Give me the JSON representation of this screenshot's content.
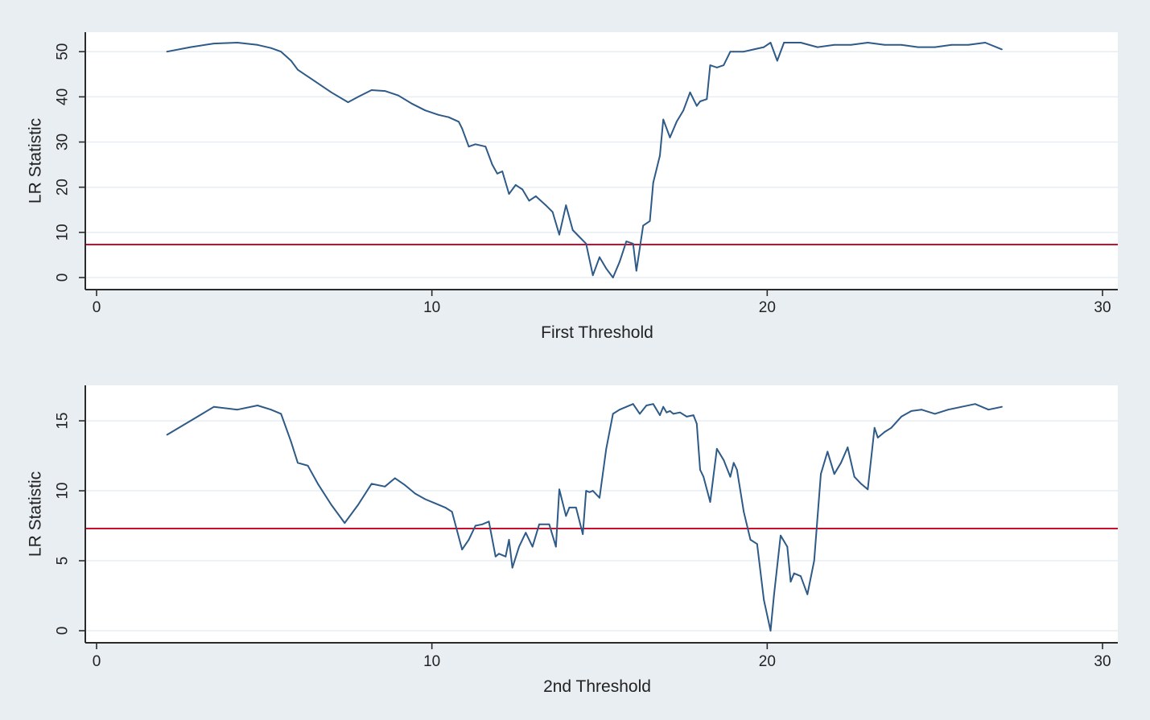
{
  "chart_data": [
    {
      "type": "line",
      "title": "",
      "xlabel": "First Threshold",
      "ylabel": "LR Statistic",
      "xlim": [
        0,
        30
      ],
      "ylim": [
        0,
        52
      ],
      "xticks": [
        0,
        10,
        20,
        30
      ],
      "yticks": [
        0,
        10,
        20,
        30,
        40,
        50
      ],
      "grid": true,
      "colors": {
        "series": "#2e5a87",
        "critical": "#c8102e"
      },
      "critical_value": 7.3,
      "series": [
        {
          "x": [
            2.1,
            2.8,
            3.5,
            4.2,
            4.8,
            5.2,
            5.5,
            5.8,
            6.0,
            6.5,
            7.0,
            7.5,
            7.8,
            8.2,
            8.6,
            9.0,
            9.4,
            9.8,
            10.2,
            10.5,
            10.8,
            10.9,
            11.1,
            11.3,
            11.6,
            11.8,
            11.95,
            12.1,
            12.3,
            12.5,
            12.7,
            12.9,
            13.1,
            13.4,
            13.6,
            13.8,
            14.0,
            14.2,
            14.4,
            14.6,
            14.8,
            15.0,
            15.2,
            15.4,
            15.6,
            15.8,
            16.0,
            16.1,
            16.3,
            16.5,
            16.6,
            16.8,
            16.9,
            17.1,
            17.3,
            17.5,
            17.7,
            17.9,
            18.0,
            18.2,
            18.3,
            18.5,
            18.7,
            18.9,
            19.0,
            19.3,
            19.6,
            19.9,
            20.1,
            20.3,
            20.5,
            20.7,
            21.0,
            21.5,
            22.0,
            22.5,
            23.0,
            23.5,
            24.0,
            24.5,
            25.0,
            25.5,
            26.0,
            26.5,
            27.0
          ],
          "values": [
            50,
            51,
            51.8,
            52,
            51.5,
            50.8,
            50,
            48,
            46,
            43.5,
            41,
            38.8,
            40,
            41.5,
            41.3,
            40.3,
            38.5,
            37,
            36,
            35.5,
            34.5,
            33,
            29,
            29.5,
            29,
            25,
            23,
            23.5,
            18.5,
            20.5,
            19.5,
            17,
            18,
            16,
            14.5,
            9.5,
            16,
            10.5,
            9,
            7.5,
            0.5,
            4.5,
            2,
            0,
            3.5,
            8,
            7.5,
            1.5,
            11.5,
            12.5,
            21,
            27,
            35,
            31,
            34.5,
            37,
            41,
            38,
            39,
            39.5,
            47,
            46.5,
            47,
            50,
            50,
            50,
            50.5,
            51,
            52,
            48,
            52,
            52,
            52,
            51,
            51.5,
            51.5,
            52,
            51.5,
            51.5,
            51,
            51,
            51.5,
            51.5,
            52,
            50.5
          ]
        }
      ]
    },
    {
      "type": "line",
      "title": "",
      "xlabel": "2nd Threshold",
      "ylabel": "LR Statistic",
      "xlim": [
        0,
        30
      ],
      "ylim": [
        0,
        16.5
      ],
      "xticks": [
        0,
        10,
        20,
        30
      ],
      "yticks": [
        0,
        5,
        10,
        15
      ],
      "grid": true,
      "colors": {
        "series": "#2e5a87",
        "critical": "#c8102e"
      },
      "critical_value": 7.3,
      "series": [
        {
          "x": [
            2.1,
            2.8,
            3.5,
            4.2,
            4.8,
            5.2,
            5.5,
            5.8,
            6.0,
            6.3,
            6.6,
            7.0,
            7.4,
            7.8,
            8.2,
            8.6,
            8.9,
            9.2,
            9.5,
            9.8,
            10.1,
            10.4,
            10.6,
            10.9,
            11.1,
            11.3,
            11.5,
            11.7,
            11.9,
            12.0,
            12.2,
            12.3,
            12.4,
            12.6,
            12.8,
            13.0,
            13.2,
            13.5,
            13.7,
            13.8,
            14.0,
            14.1,
            14.3,
            14.5,
            14.6,
            14.7,
            14.8,
            15.0,
            15.2,
            15.4,
            15.6,
            15.8,
            16.0,
            16.2,
            16.4,
            16.6,
            16.8,
            16.9,
            17.0,
            17.1,
            17.2,
            17.4,
            17.6,
            17.8,
            17.9,
            18.0,
            18.1,
            18.3,
            18.5,
            18.7,
            18.9,
            19.0,
            19.1,
            19.3,
            19.5,
            19.7,
            19.9,
            20.1,
            20.2,
            20.4,
            20.6,
            20.7,
            20.8,
            21.0,
            21.2,
            21.4,
            21.6,
            21.8,
            22.0,
            22.2,
            22.4,
            22.6,
            22.8,
            23.0,
            23.2,
            23.3,
            23.5,
            23.7,
            24.0,
            24.3,
            24.6,
            25.0,
            25.4,
            25.8,
            26.2,
            26.6,
            27.0
          ],
          "values": [
            14,
            15,
            16,
            15.8,
            16.1,
            15.8,
            15.5,
            13.5,
            12,
            11.8,
            10.5,
            9,
            7.7,
            9,
            10.5,
            10.3,
            10.9,
            10.4,
            9.8,
            9.4,
            9.1,
            8.8,
            8.5,
            5.8,
            6.5,
            7.5,
            7.6,
            7.8,
            5.3,
            5.5,
            5.3,
            6.5,
            4.5,
            6,
            7,
            6,
            7.6,
            7.6,
            6,
            10.1,
            8.2,
            8.8,
            8.8,
            6.9,
            10,
            9.9,
            10,
            9.5,
            13,
            15.5,
            15.8,
            16,
            16.2,
            15.5,
            16.1,
            16.2,
            15.4,
            16,
            15.6,
            15.7,
            15.5,
            15.6,
            15.3,
            15.4,
            14.8,
            11.5,
            11,
            9.2,
            13,
            12.2,
            11,
            12,
            11.5,
            8.5,
            6.5,
            6.2,
            2.2,
            0,
            2.5,
            6.8,
            6,
            3.5,
            4.1,
            3.9,
            2.6,
            5,
            11.2,
            12.8,
            11.2,
            12,
            13.1,
            11,
            10.5,
            10.1,
            14.5,
            13.8,
            14.2,
            14.5,
            15.3,
            15.7,
            15.8,
            15.5,
            15.8,
            16,
            16.2,
            15.8,
            16
          ]
        }
      ]
    }
  ]
}
